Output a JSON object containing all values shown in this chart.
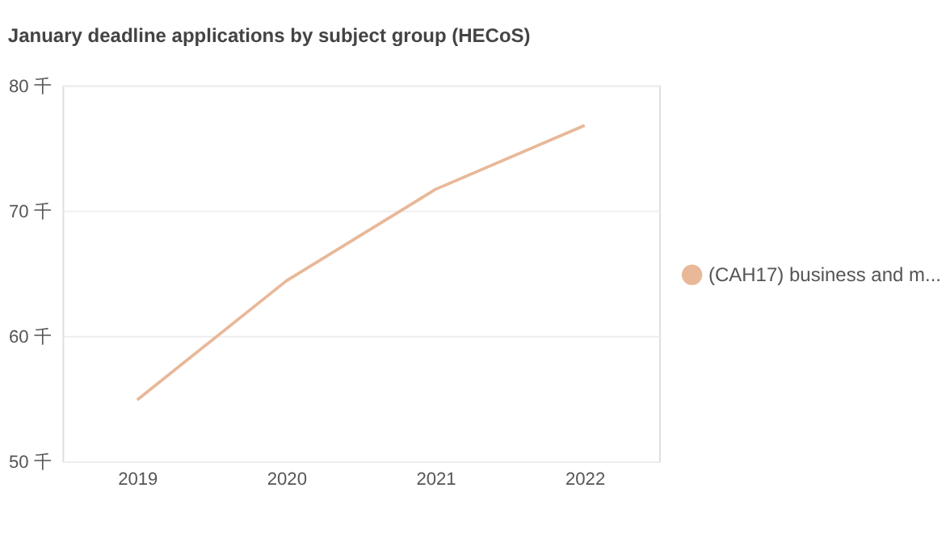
{
  "chart_data": {
    "type": "line",
    "title": "January deadline applications by subject group (HECoS)",
    "categories": [
      "2019",
      "2020",
      "2021",
      "2022"
    ],
    "series": [
      {
        "name": "(CAH17) business and m...",
        "color": "#e8b898",
        "values": [
          54.9,
          64.4,
          71.7,
          76.8
        ]
      }
    ],
    "ylim": [
      50,
      80
    ],
    "yticks": [
      {
        "value": 50,
        "label": "50 千"
      },
      {
        "value": 60,
        "label": "60 千"
      },
      {
        "value": 70,
        "label": "70 千"
      },
      {
        "value": 80,
        "label": "80 千"
      }
    ],
    "grid": "y",
    "legend": "right",
    "marker": "none",
    "line_style": "solid"
  }
}
